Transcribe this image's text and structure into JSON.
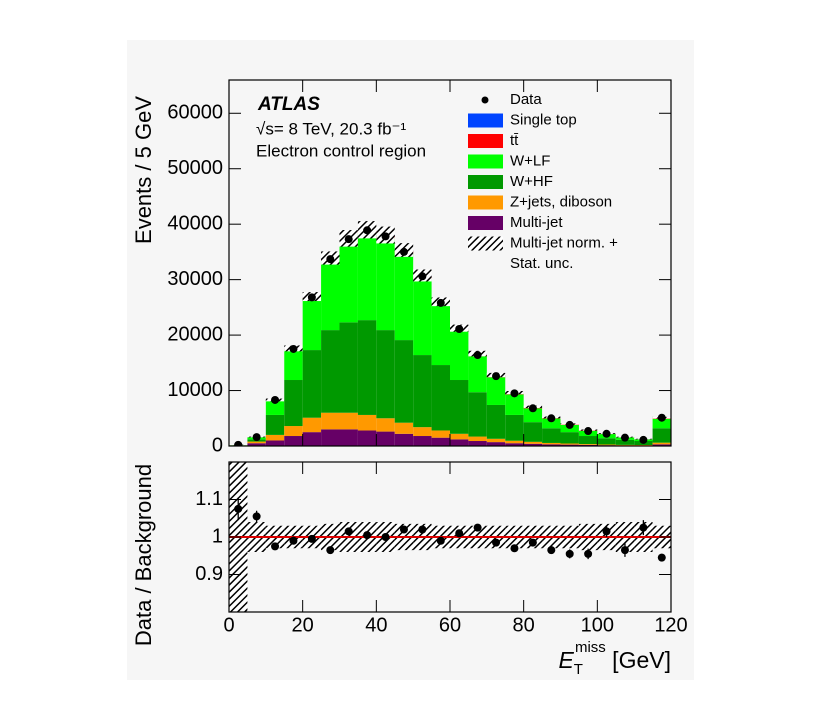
{
  "chart_data": [
    {
      "type": "stacked_histogram",
      "ylabel": "Events / 5 GeV",
      "annotations": [
        "ATLAS",
        "√s= 8 TeV,  20.3 fb⁻¹",
        "Electron control region"
      ],
      "bins": [
        0,
        5,
        10,
        15,
        20,
        25,
        30,
        35,
        40,
        45,
        50,
        55,
        60,
        65,
        70,
        75,
        80,
        85,
        90,
        95,
        100,
        105,
        110,
        115,
        120
      ],
      "xlim": [
        0,
        120
      ],
      "ylim": [
        0,
        66000
      ],
      "yticks": [
        0,
        10000,
        20000,
        30000,
        40000,
        50000,
        60000
      ],
      "legend": "upper right",
      "data": {
        "name": "Data",
        "color": "#000000",
        "values": [
          200,
          1600,
          8300,
          17500,
          26800,
          33700,
          37300,
          38900,
          37800,
          35000,
          30600,
          25800,
          21100,
          16400,
          12600,
          9500,
          6800,
          5000,
          3800,
          2700,
          2200,
          1500,
          1100,
          5100
        ]
      },
      "series": [
        {
          "name": "Single top",
          "color": "#0044ff",
          "values": [
            0,
            10,
            40,
            50,
            100,
            150,
            150,
            150,
            150,
            150,
            150,
            150,
            150,
            120,
            100,
            80,
            70,
            50,
            40,
            30,
            20,
            20,
            15,
            50
          ]
        },
        {
          "name": "tt̄",
          "color": "#ff0000",
          "values": [
            0,
            20,
            60,
            150,
            250,
            350,
            400,
            450,
            500,
            500,
            500,
            450,
            400,
            350,
            300,
            250,
            200,
            150,
            120,
            100,
            80,
            60,
            40,
            150
          ]
        },
        {
          "name": "W+LF",
          "color": "#00ff00",
          "values": [
            40,
            400,
            2600,
            5500,
            9300,
            12500,
            14600,
            15700,
            16500,
            15600,
            13700,
            10800,
            8800,
            6500,
            5000,
            3700,
            2500,
            1750,
            1300,
            950,
            750,
            430,
            300,
            1700
          ]
        },
        {
          "name": "W+HF",
          "color": "#009900",
          "values": [
            40,
            400,
            3600,
            8300,
            12200,
            14900,
            16300,
            17100,
            15900,
            14900,
            13000,
            11800,
            9700,
            8000,
            6100,
            4650,
            3550,
            2650,
            2050,
            1450,
            1130,
            900,
            720,
            2600
          ]
        },
        {
          "name": "Z+jets, diboson",
          "color": "#ff9900",
          "values": [
            60,
            300,
            1000,
            1800,
            2600,
            3000,
            3000,
            2800,
            2400,
            2000,
            1600,
            1300,
            1000,
            800,
            600,
            450,
            350,
            250,
            200,
            150,
            120,
            100,
            80,
            300
          ]
        },
        {
          "name": "Multi-jet",
          "color": "#660066",
          "values": [
            60,
            500,
            1000,
            1800,
            2500,
            3000,
            3000,
            2800,
            2600,
            2200,
            1800,
            1500,
            1200,
            900,
            700,
            500,
            400,
            300,
            250,
            200,
            150,
            100,
            100,
            300
          ]
        }
      ],
      "uncertainty": {
        "name": [
          "Multi-jet norm. +",
          "Stat. unc."
        ]
      }
    },
    {
      "type": "ratio",
      "ylabel": "Data / Background",
      "xlabel": {
        "symbol": "E",
        "sub": "T",
        "sup": "miss",
        "unit": " [GeV]"
      },
      "xlim": [
        0,
        120
      ],
      "xticks": [
        0,
        20,
        40,
        60,
        80,
        100,
        120
      ],
      "ylim": [
        0.8,
        1.2
      ],
      "yticks": [
        0.9,
        1,
        1.1
      ],
      "reference": 1,
      "reference_color": "#dd0000",
      "values": [
        1.075,
        1.055,
        0.975,
        0.99,
        0.995,
        0.965,
        1.015,
        1.005,
        1.0,
        1.02,
        1.02,
        0.99,
        1.01,
        1.025,
        0.985,
        0.97,
        0.985,
        0.965,
        0.955,
        0.955,
        1.015,
        0.965,
        1.025,
        0.945
      ],
      "errors": [
        0.03,
        0.015,
        0.006,
        0.004,
        0.004,
        0.004,
        0.004,
        0.004,
        0.004,
        0.004,
        0.004,
        0.005,
        0.005,
        0.006,
        0.007,
        0.008,
        0.009,
        0.01,
        0.012,
        0.014,
        0.015,
        0.018,
        0.02,
        0.01
      ],
      "band": [
        0.3,
        0.04,
        0.03,
        0.03,
        0.03,
        0.035,
        0.04,
        0.04,
        0.04,
        0.035,
        0.035,
        0.03,
        0.03,
        0.03,
        0.03,
        0.03,
        0.03,
        0.03,
        0.03,
        0.035,
        0.035,
        0.04,
        0.04,
        0.03
      ]
    }
  ]
}
